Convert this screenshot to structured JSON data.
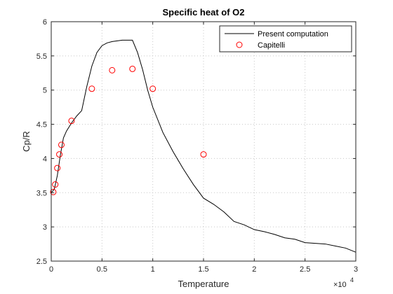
{
  "chart_data": {
    "type": "line",
    "title": "Specific heat of O2",
    "xlabel": "Temperature",
    "ylabel": "Cp/R",
    "x_exponent_label": "×10",
    "x_exponent_power": "4",
    "xlim": [
      0,
      30000
    ],
    "ylim": [
      2.5,
      6
    ],
    "xticks": [
      0,
      5000,
      10000,
      15000,
      20000,
      25000,
      30000
    ],
    "xtick_labels": [
      "0",
      "0.5",
      "1",
      "1.5",
      "2",
      "2.5",
      "3"
    ],
    "yticks": [
      2.5,
      3,
      3.5,
      4,
      4.5,
      5,
      5.5,
      6
    ],
    "ytick_labels": [
      "2.5",
      "3",
      "3.5",
      "4",
      "4.5",
      "5",
      "5.5",
      "6"
    ],
    "grid": "dotted",
    "legend_position": "top-right",
    "series": [
      {
        "name": "Present computation",
        "style": "line",
        "color": "#000000",
        "x": [
          0,
          300,
          600,
          900,
          1200,
          1500,
          2000,
          2500,
          3000,
          3500,
          4000,
          4500,
          5000,
          5500,
          6000,
          6500,
          7000,
          7500,
          8000,
          8500,
          9000,
          9500,
          10000,
          11000,
          12000,
          13000,
          14000,
          15000,
          16000,
          17000,
          18000,
          19000,
          20000,
          21000,
          22000,
          23000,
          24000,
          25000,
          26000,
          27000,
          28000,
          29000,
          30000
        ],
        "y": [
          3.5,
          3.55,
          3.75,
          4.05,
          4.3,
          4.4,
          4.52,
          4.62,
          4.7,
          5.05,
          5.35,
          5.55,
          5.65,
          5.69,
          5.71,
          5.72,
          5.73,
          5.73,
          5.73,
          5.55,
          5.3,
          5.0,
          4.75,
          4.38,
          4.1,
          3.85,
          3.62,
          3.42,
          3.33,
          3.22,
          3.08,
          3.03,
          2.96,
          2.93,
          2.89,
          2.84,
          2.82,
          2.77,
          2.76,
          2.75,
          2.72,
          2.69,
          2.63
        ]
      },
      {
        "name": "Capitelli",
        "style": "marker",
        "marker": "circle",
        "color": "#ff0000",
        "x": [
          200,
          400,
          600,
          800,
          1000,
          2000,
          4000,
          6000,
          8000,
          10000,
          15000
        ],
        "y": [
          3.51,
          3.62,
          3.86,
          4.06,
          4.2,
          4.55,
          5.02,
          5.29,
          5.31,
          5.02,
          4.06
        ]
      }
    ]
  }
}
